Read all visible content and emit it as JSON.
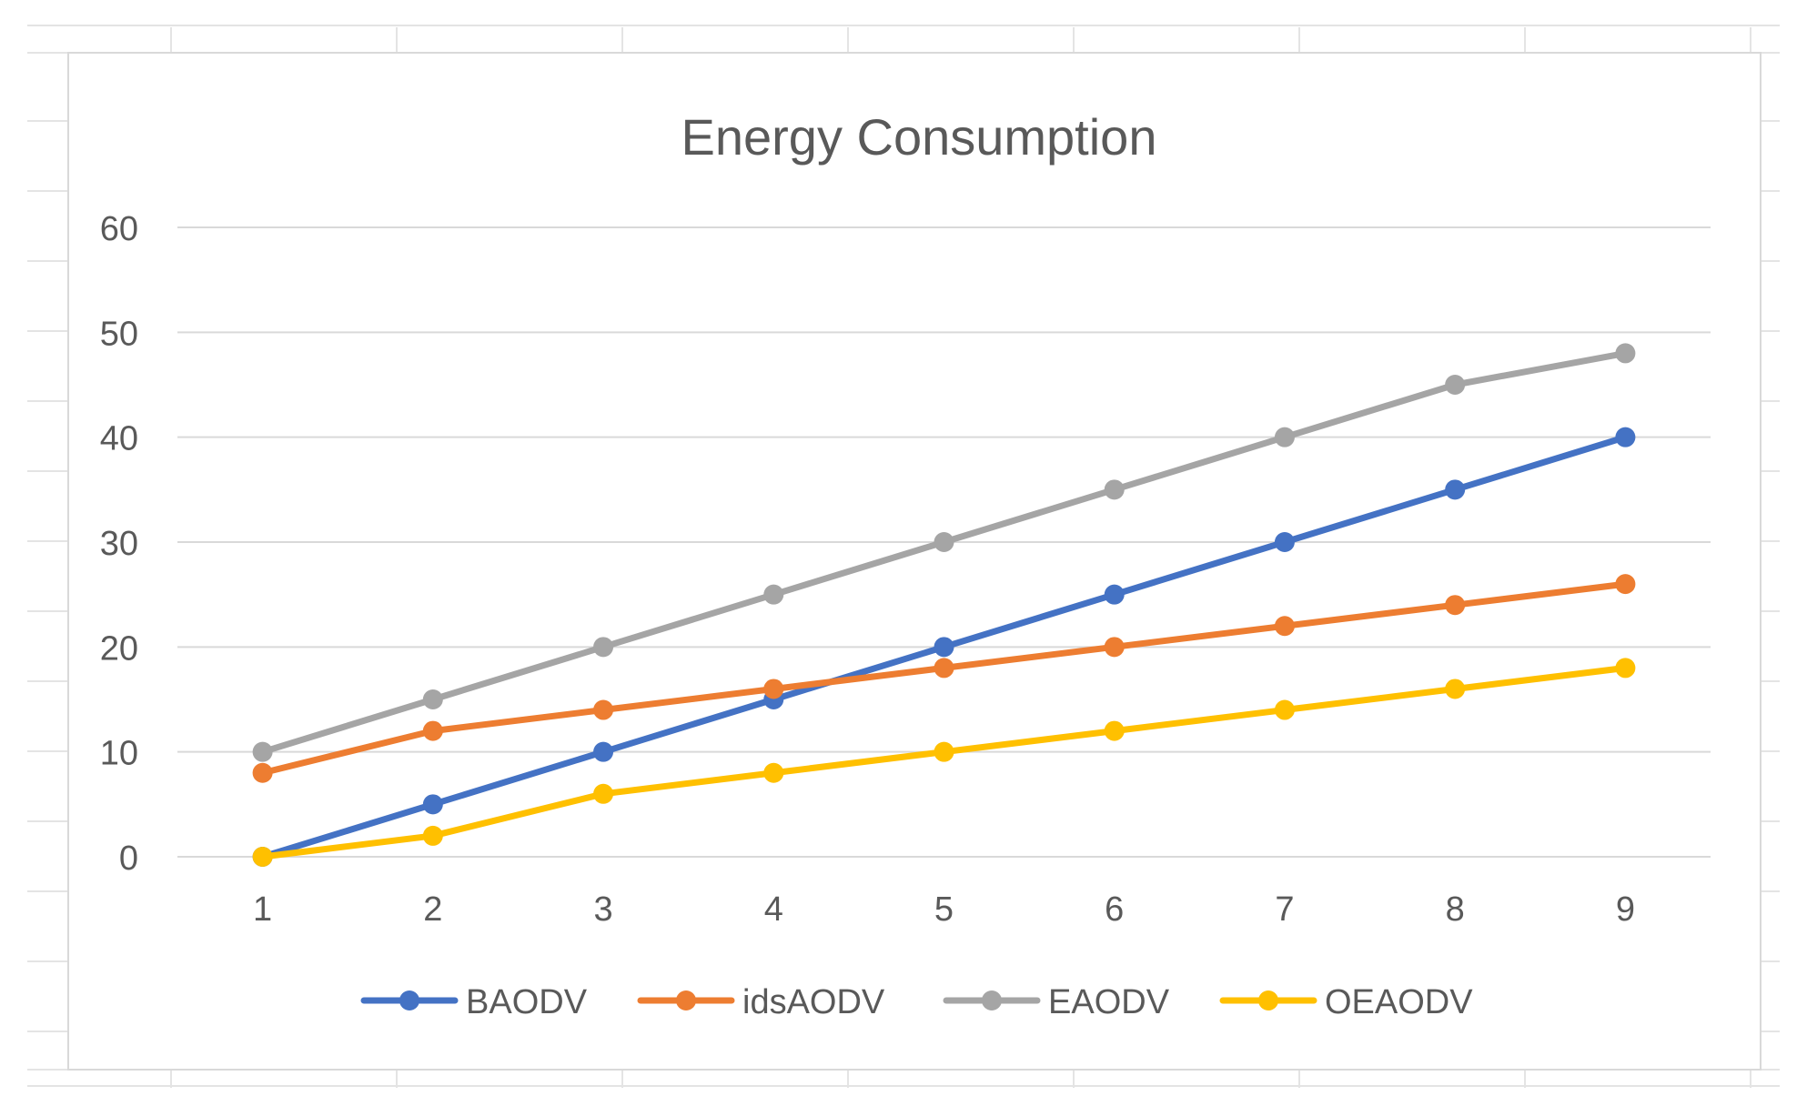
{
  "chart_data": {
    "type": "line",
    "title": "Energy Consumption",
    "xlabel": "",
    "ylabel": "",
    "x": [
      1,
      2,
      3,
      4,
      5,
      6,
      7,
      8,
      9
    ],
    "ylim": [
      0,
      60
    ],
    "yticks": [
      0,
      10,
      20,
      30,
      40,
      50,
      60
    ],
    "grid": true,
    "legend_position": "bottom",
    "series": [
      {
        "name": "BAODV",
        "color": "#4472C4",
        "values": [
          0,
          5,
          10,
          15,
          20,
          25,
          30,
          35,
          40
        ]
      },
      {
        "name": "idsAODV",
        "color": "#ED7D31",
        "values": [
          8,
          12,
          14,
          16,
          18,
          20,
          22,
          24,
          26
        ]
      },
      {
        "name": "EAODV",
        "color": "#A5A5A5",
        "values": [
          10,
          15,
          20,
          25,
          30,
          35,
          40,
          45,
          48
        ]
      },
      {
        "name": "OEAODV",
        "color": "#FFC000",
        "values": [
          0,
          2,
          6,
          8,
          10,
          12,
          14,
          16,
          18
        ]
      }
    ]
  }
}
